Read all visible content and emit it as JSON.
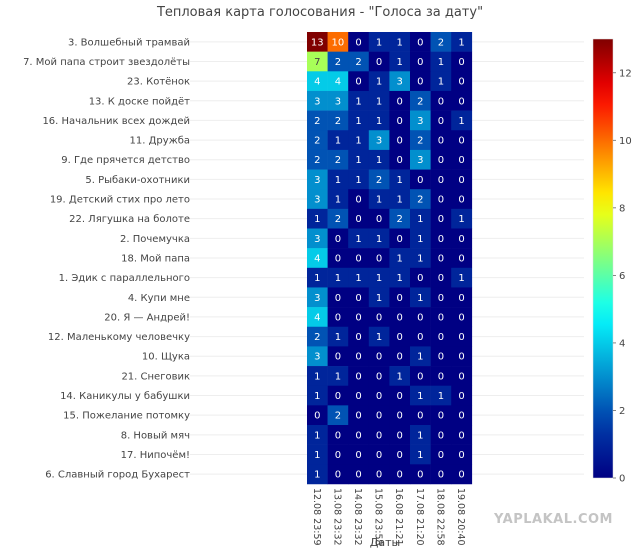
{
  "chart_data": {
    "type": "heatmap",
    "title": "Тепловая карта голосования - \"Голоса за дату\"",
    "xlabel": "Даты",
    "ylabel": "",
    "x": [
      "12.08 23:59",
      "13.08 23:32",
      "14.08 23:32",
      "15.08 23:58",
      "16.08 21:21",
      "17.08 21:20",
      "18.08 22:58",
      "19.08 20:40"
    ],
    "y": [
      "3. Волшебный трамвай",
      "7. Мой папа строит звездолёты",
      "23. Котёнок",
      "13. К доске пойдёт",
      "16. Начальник всех дождей",
      "11. Дружба",
      "9. Где прячется детство",
      "5. Рыбаки-охотники",
      "19. Детский стих про лето",
      "22. Лягушка на болоте",
      "2. Почемучка",
      "18. Мой папа",
      "1. Эдик с параллельного",
      "4. Купи мне",
      "20. Я — Андрей!",
      "12. Маленькому человечку",
      "10. Щука",
      "21. Снеговик",
      "14. Каникулы у бабушки",
      "15. Пожелание потомку",
      "8. Новый мяч",
      "17. Нипочём!",
      "6. Славный город Бухарест"
    ],
    "z": [
      [
        13,
        10,
        0,
        1,
        1,
        0,
        2,
        1
      ],
      [
        7,
        2,
        2,
        0,
        1,
        0,
        1,
        0
      ],
      [
        4,
        4,
        0,
        1,
        3,
        0,
        1,
        0
      ],
      [
        3,
        3,
        1,
        1,
        0,
        2,
        0,
        0
      ],
      [
        2,
        2,
        1,
        1,
        0,
        3,
        0,
        1
      ],
      [
        2,
        1,
        1,
        3,
        0,
        2,
        0,
        0
      ],
      [
        2,
        2,
        1,
        1,
        0,
        3,
        0,
        0
      ],
      [
        3,
        1,
        1,
        2,
        1,
        0,
        0,
        0
      ],
      [
        3,
        1,
        0,
        1,
        1,
        2,
        0,
        0
      ],
      [
        1,
        2,
        0,
        0,
        2,
        1,
        0,
        1
      ],
      [
        3,
        0,
        1,
        1,
        0,
        1,
        0,
        0
      ],
      [
        4,
        0,
        0,
        0,
        1,
        1,
        0,
        0
      ],
      [
        1,
        1,
        1,
        1,
        1,
        0,
        0,
        1
      ],
      [
        3,
        0,
        0,
        1,
        0,
        1,
        0,
        0
      ],
      [
        4,
        0,
        0,
        0,
        0,
        0,
        0,
        0
      ],
      [
        2,
        1,
        0,
        1,
        0,
        0,
        0,
        0
      ],
      [
        3,
        0,
        0,
        0,
        0,
        1,
        0,
        0
      ],
      [
        1,
        1,
        0,
        0,
        1,
        0,
        0,
        0
      ],
      [
        1,
        0,
        0,
        0,
        0,
        1,
        1,
        0
      ],
      [
        0,
        2,
        0,
        0,
        0,
        0,
        0,
        0
      ],
      [
        1,
        0,
        0,
        0,
        0,
        1,
        0,
        0
      ],
      [
        1,
        0,
        0,
        0,
        0,
        1,
        0,
        0
      ],
      [
        1,
        0,
        0,
        0,
        0,
        0,
        0,
        0
      ]
    ],
    "zlim": [
      0,
      13
    ],
    "colorscale": "jet",
    "colorbar_ticks": [
      0,
      2,
      4,
      6,
      8,
      10,
      12
    ],
    "grid": true
  },
  "watermark": "YAPLAKAL.COM"
}
